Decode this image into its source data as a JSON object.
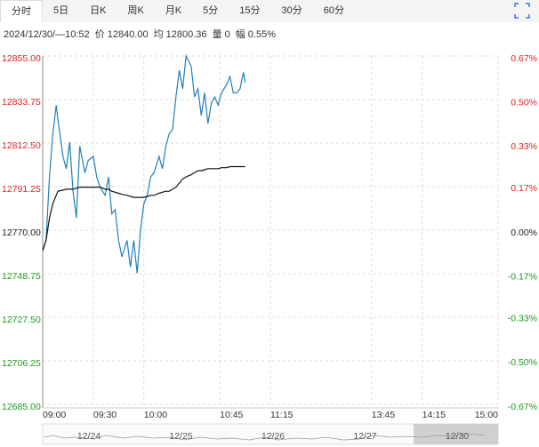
{
  "tabs": [
    "分时",
    "5日",
    "日K",
    "周K",
    "月K",
    "5分",
    "15分",
    "30分",
    "60分"
  ],
  "info": {
    "datetime": "2024/12/30/—10:52",
    "price_label": "价",
    "price": "12840.00",
    "avg_label": "均",
    "avg": "12800.36",
    "vol_label": "量",
    "vol": "0",
    "amp_label": "幅",
    "amp": "0.55%"
  },
  "navigator": {
    "dates": [
      "12/24",
      "12/25",
      "12/26",
      "12/27",
      "12/30"
    ]
  },
  "chart_data": {
    "type": "line",
    "x": [
      0,
      2,
      4,
      6,
      8,
      9,
      12,
      14,
      16,
      18,
      20,
      22,
      25,
      27,
      30,
      32,
      34,
      37,
      39,
      41,
      43,
      45,
      47,
      50,
      52,
      54,
      56,
      58,
      60,
      62,
      64,
      66,
      69,
      71,
      73,
      75,
      77,
      79,
      81,
      83,
      85,
      88,
      90,
      92,
      94,
      96,
      98,
      100,
      102,
      104,
      106,
      109,
      111,
      113,
      115,
      117,
      119,
      120
    ],
    "xlim": [
      0,
      270
    ],
    "xticks": [
      {
        "value": 0,
        "label": "09:00"
      },
      {
        "value": 30,
        "label": "09:30"
      },
      {
        "value": 60,
        "label": "10:00"
      },
      {
        "value": 105,
        "label": "10:45"
      },
      {
        "value": 135,
        "label": "11:15"
      },
      {
        "value": 195,
        "label": "13:45"
      },
      {
        "value": 225,
        "label": "14:15"
      },
      {
        "value": 270,
        "label": "15:00"
      }
    ],
    "ylim": [
      12685,
      12855
    ],
    "yticks": [
      {
        "value": 12855,
        "label": "12855.00"
      },
      {
        "value": 12833.75,
        "label": "12833.75"
      },
      {
        "value": 12812.5,
        "label": "12812.50"
      },
      {
        "value": 12791.25,
        "label": "12791.25"
      },
      {
        "value": 12770,
        "label": "12770.00"
      },
      {
        "value": 12748.75,
        "label": "12748.75"
      },
      {
        "value": 12727.5,
        "label": "12727.50"
      },
      {
        "value": 12706.25,
        "label": "12706.25"
      },
      {
        "value": 12685,
        "label": "12685.00"
      }
    ],
    "y2lim": [
      -0.67,
      0.67
    ],
    "y2ticks": [
      {
        "value": 0.67,
        "label": "0.67%"
      },
      {
        "value": 0.5,
        "label": "0.50%"
      },
      {
        "value": 0.33,
        "label": "0.33%"
      },
      {
        "value": 0.17,
        "label": "0.17%"
      },
      {
        "value": 0,
        "label": "0.00%"
      },
      {
        "value": -0.17,
        "label": "-0.17%"
      },
      {
        "value": -0.33,
        "label": "-0.33%"
      },
      {
        "value": -0.5,
        "label": "-0.50%"
      },
      {
        "value": -0.67,
        "label": "-0.67%"
      }
    ],
    "grid": true,
    "series": [
      {
        "color": "#1f7fbf",
        "values": [
          12760,
          12765,
          12796,
          12817,
          12831,
          12824,
          12806,
          12800,
          12813,
          12789,
          12776,
          12811,
          12798,
          12804,
          12806,
          12796,
          12791,
          12787,
          12796,
          12778,
          12780,
          12765,
          12757,
          12765,
          12752,
          12765,
          12749,
          12770,
          12783,
          12787,
          12796,
          12798,
          12806,
          12800,
          12811,
          12817,
          12819,
          12835,
          12848,
          12839,
          12855,
          12850,
          12835,
          12839,
          12826,
          12837,
          12822,
          12832,
          12835,
          12831,
          12837,
          12841,
          12845,
          12837,
          12837,
          12839,
          12847,
          12842
        ]
      },
      {
        "color": "#111111",
        "values": [
          12760,
          12765,
          12776,
          12783,
          12787,
          12789,
          12789.5,
          12790,
          12790,
          12790,
          12790.5,
          12791,
          12791,
          12791,
          12791,
          12791,
          12791,
          12790,
          12790,
          12789,
          12788.5,
          12788,
          12787.5,
          12787,
          12786.5,
          12786,
          12786,
          12786,
          12786,
          12786.5,
          12787,
          12787,
          12788,
          12788.5,
          12789,
          12789,
          12790,
          12791,
          12793,
          12795,
          12796,
          12797,
          12798,
          12799,
          12799,
          12799.5,
          12800,
          12800,
          12800,
          12800,
          12800.5,
          12800.5,
          12801,
          12801,
          12801,
          12801,
          12801,
          12801
        ]
      }
    ]
  }
}
